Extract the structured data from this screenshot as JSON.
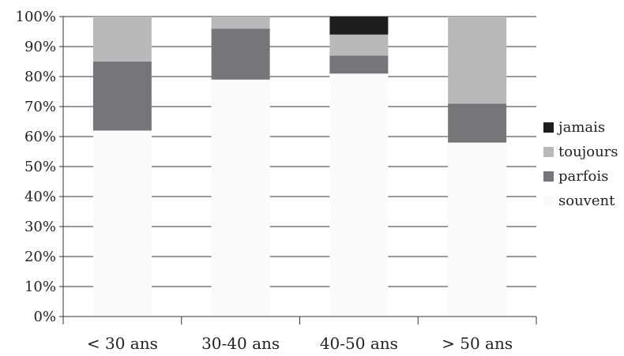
{
  "chart_data": {
    "type": "bar",
    "stacked": true,
    "orientation": "vertical",
    "categories": [
      "< 30 ans",
      "30-40 ans",
      "40-50 ans",
      "> 50 ans"
    ],
    "series": [
      {
        "name": "souvent",
        "color": "#fafafa",
        "values": [
          62,
          79,
          81,
          58
        ]
      },
      {
        "name": "parfois",
        "color": "#76767a",
        "values": [
          23,
          17,
          6,
          13
        ]
      },
      {
        "name": "toujours",
        "color": "#b9b9bb",
        "values": [
          15,
          4,
          7,
          29
        ]
      },
      {
        "name": "jamais",
        "color": "#1e1e1e",
        "values": [
          0,
          0,
          6,
          0
        ]
      }
    ],
    "legend_order": [
      "jamais",
      "toujours",
      "parfois",
      "souvent"
    ],
    "y_ticks": [
      "0%",
      "10%",
      "20%",
      "30%",
      "40%",
      "50%",
      "60%",
      "70%",
      "80%",
      "90%",
      "100%"
    ],
    "ylim": [
      0,
      100
    ],
    "grid": true,
    "legend_position": "right",
    "title": "",
    "xlabel": "",
    "ylabel": ""
  }
}
